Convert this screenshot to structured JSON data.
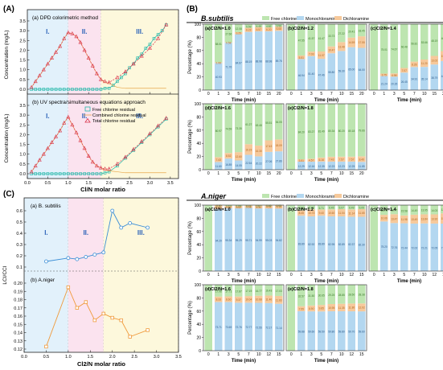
{
  "colors": {
    "free": "#bde5b0",
    "mono": "#b3d7f0",
    "di": "#f6c99b",
    "tri_line": "#d9334a",
    "free_line": "#21b6a8",
    "comb_line": "#e8a64a",
    "ratio_line": "#3b8ed6",
    "ratio_line_b": "#f09a3c",
    "zone1": "#e2f1fb",
    "zone2": "#fbe3ef",
    "zone3": "#fdf8dc"
  },
  "panels": {
    "A": "(A)",
    "B": "(B)",
    "C": "(C)",
    "species_b": "B.subtilis",
    "species_a": "A.niger"
  },
  "chart_data": [
    {
      "type": "line",
      "id": "A",
      "subplots": [
        {
          "label": "(a) DPD colorimetric method",
          "series": [
            {
              "name": "Free chlorine residual",
              "x": [
                0.1,
                0.2,
                0.3,
                0.4,
                0.5,
                0.6,
                0.7,
                0.8,
                0.9,
                1.0,
                1.1,
                1.2,
                1.3,
                1.4,
                1.5,
                1.6,
                1.7,
                1.8,
                1.9,
                2.0,
                2.1,
                2.2,
                2.3,
                2.4,
                2.5,
                2.6,
                2.7,
                2.8,
                2.9,
                3.0,
                3.1,
                3.2,
                3.3,
                3.4
              ],
              "y": [
                0,
                0,
                0,
                0,
                0,
                0,
                0,
                0,
                0,
                0,
                0,
                0,
                0,
                0,
                0,
                0,
                0,
                0,
                0.05,
                0.05,
                0.2,
                0.4,
                0.6,
                0.8,
                1.1,
                1.3,
                1.6,
                1.8,
                2.1,
                2.3,
                2.6,
                2.8,
                3.0,
                3.3
              ]
            },
            {
              "name": "Combined chlorine residual",
              "x": [
                0.1,
                0.2,
                0.3,
                0.4,
                0.5,
                0.6,
                0.7,
                0.8,
                0.9,
                1.0,
                1.1,
                1.2,
                1.3,
                1.4,
                1.5,
                1.6,
                1.7,
                1.8,
                1.9,
                2.0,
                2.2,
                2.4,
                2.6,
                2.8,
                3.0,
                3.2,
                3.4
              ],
              "y": [
                0.1,
                0.4,
                0.7,
                1.0,
                1.3,
                1.6,
                1.9,
                2.2,
                2.6,
                2.9,
                2.85,
                2.7,
                2.4,
                2.0,
                1.6,
                1.2,
                0.8,
                0.5,
                0.35,
                0.3,
                0.1,
                0.05,
                0.05,
                0.05,
                0.05,
                0.05,
                0.05
              ]
            },
            {
              "name": "Total chlorine residual",
              "x": [
                0.1,
                0.2,
                0.3,
                0.4,
                0.5,
                0.6,
                0.7,
                0.8,
                0.9,
                1.0,
                1.1,
                1.2,
                1.3,
                1.4,
                1.5,
                1.6,
                1.7,
                1.8,
                1.9,
                2.0,
                2.2,
                2.4,
                2.6,
                2.8,
                3.0,
                3.2,
                3.4
              ],
              "y": [
                0.1,
                0.4,
                0.7,
                1.0,
                1.3,
                1.6,
                1.9,
                2.2,
                2.6,
                2.9,
                2.85,
                2.7,
                2.4,
                2.0,
                1.6,
                1.2,
                0.8,
                0.5,
                0.4,
                0.35,
                0.6,
                0.9,
                1.3,
                1.7,
                2.1,
                2.6,
                3.3
              ]
            }
          ]
        },
        {
          "label": "(b) UV spectra/simultaneous equations approach",
          "series": [
            {
              "name": "Free chlorine residual",
              "x": [
                0.1,
                0.2,
                0.3,
                0.4,
                0.5,
                0.6,
                0.7,
                0.8,
                0.9,
                1.0,
                1.1,
                1.2,
                1.3,
                1.4,
                1.5,
                1.6,
                1.7,
                1.8,
                1.9,
                2.0,
                2.2,
                2.4,
                2.6,
                2.8,
                3.0,
                3.2,
                3.4
              ],
              "y": [
                0,
                0,
                0,
                0,
                0,
                0,
                0,
                0,
                0,
                0,
                0,
                0,
                0,
                0,
                0,
                0,
                0,
                0,
                0.05,
                0.1,
                0.4,
                0.8,
                1.2,
                1.6,
                2.0,
                2.4,
                2.8
              ]
            },
            {
              "name": "Combined chlorine residual",
              "x": [
                0.1,
                0.2,
                0.3,
                0.4,
                0.5,
                0.6,
                0.7,
                0.8,
                0.9,
                1.0,
                1.1,
                1.2,
                1.3,
                1.4,
                1.5,
                1.6,
                1.7,
                1.8,
                1.9,
                2.0,
                2.2,
                2.4,
                2.6,
                2.8,
                3.0,
                3.2,
                3.4
              ],
              "y": [
                0.1,
                0.4,
                0.7,
                1.0,
                1.3,
                1.6,
                1.9,
                2.2,
                2.6,
                2.9,
                2.5,
                2.1,
                1.7,
                1.3,
                0.9,
                0.6,
                0.4,
                0.3,
                0.2,
                0.15,
                0.1,
                0.05,
                0.05,
                0.05,
                0.05,
                0.05,
                0.05
              ]
            },
            {
              "name": "Total chlorine residual",
              "x": [
                0.1,
                0.2,
                0.3,
                0.4,
                0.5,
                0.6,
                0.7,
                0.8,
                0.9,
                1.0,
                1.1,
                1.2,
                1.3,
                1.4,
                1.5,
                1.6,
                1.7,
                1.8,
                1.9,
                2.0,
                2.2,
                2.4,
                2.6,
                2.8,
                3.0,
                3.2,
                3.4
              ],
              "y": [
                0.1,
                0.4,
                0.7,
                1.0,
                1.3,
                1.6,
                1.9,
                2.2,
                2.6,
                2.9,
                2.5,
                2.1,
                1.7,
                1.3,
                0.9,
                0.6,
                0.4,
                0.3,
                0.25,
                0.25,
                0.5,
                0.85,
                1.25,
                1.65,
                2.05,
                2.45,
                2.85
              ]
            }
          ]
        }
      ],
      "zones": [
        {
          "label": "I.",
          "from": 0,
          "to": 1.0
        },
        {
          "label": "II.",
          "from": 1.0,
          "to": 1.8
        },
        {
          "label": "III.",
          "from": 1.8,
          "to": 3.7
        }
      ],
      "xlabel": "Cl/N molar ratio",
      "ylabel": "Concentration (mg/L)",
      "xlim": [
        0,
        3.7
      ],
      "ylim": [
        0,
        3.5
      ],
      "xticks": [
        "0.0",
        "0.5",
        "1.0",
        "1.5",
        "2.0",
        "2.5",
        "3.0",
        "3.5"
      ],
      "yticks": [
        "0.0",
        "0.5",
        "1.0",
        "1.5",
        "2.0",
        "2.5",
        "3.0",
        "3.5"
      ]
    },
    {
      "type": "line",
      "id": "C",
      "xlabel": "Cl2/N molar ratio",
      "ylabel": "LCI/CCI",
      "xlim": [
        0,
        3.5
      ],
      "xticks": [
        "0.0",
        "0.5",
        "1.0",
        "1.5",
        "2.0",
        "2.5",
        "3.0",
        "3.5"
      ],
      "zones": [
        {
          "label": "I.",
          "from": 0,
          "to": 1.0
        },
        {
          "label": "II.",
          "from": 1.0,
          "to": 1.8
        },
        {
          "label": "III.",
          "from": 1.8,
          "to": 3.5
        }
      ],
      "subplots": [
        {
          "label": "(a) B. subtilis",
          "x": [
            0.5,
            1.0,
            1.2,
            1.4,
            1.6,
            1.8,
            2.0,
            2.2,
            2.4,
            2.8
          ],
          "y": [
            0.15,
            0.18,
            0.17,
            0.19,
            0.21,
            0.23,
            0.6,
            0.45,
            0.49,
            0.45
          ],
          "ylim": [
            0.1,
            0.6
          ],
          "yticks": [
            "0.1",
            "0.2",
            "0.3",
            "0.4",
            "0.5",
            "0.6"
          ]
        },
        {
          "label": "(b) A.niger",
          "x": [
            0.5,
            1.0,
            1.2,
            1.4,
            1.6,
            1.8,
            2.0,
            2.2,
            2.4,
            2.8
          ],
          "y": [
            0.123,
            0.195,
            0.17,
            0.177,
            0.155,
            0.163,
            0.158,
            0.155,
            0.135,
            0.143
          ],
          "ylim": [
            0.12,
            0.2
          ],
          "yticks": [
            "0.12",
            "0.13",
            "0.14",
            "0.15",
            "0.16",
            "0.17",
            "0.18",
            "0.19",
            "0.20"
          ]
        }
      ]
    },
    {
      "type": "bar",
      "id": "B-subtilis",
      "stacked": true,
      "legend": [
        "Free chlorine",
        "Monochloramine",
        "Dichloramine"
      ],
      "ylabel": "Percentage (%)",
      "xlabel": "Time (min)",
      "ylim": [
        0,
        100
      ],
      "yticks": [
        "0",
        "20",
        "40",
        "60",
        "80",
        "100"
      ],
      "subplots": [
        {
          "label": "(a)Cl2/N=1.0",
          "categories": [
            "0",
            "1",
            "3",
            "5",
            "7",
            "10",
            "15",
            "20"
          ],
          "mono": [
            0,
            40.93,
            71.76,
            84.67,
            88.19,
            88.98,
            88.98,
            89.76
          ],
          "di": [
            0,
            1.06,
            0.58,
            3.25,
            6.22,
            6.57,
            6.2,
            6.68
          ]
        },
        {
          "label": "(b)Cl2/N=1.2",
          "categories": [
            "0",
            "1",
            "3",
            "5",
            "7",
            "10",
            "15",
            "20"
          ],
          "mono": [
            0,
            46.94,
            51.4,
            47.46,
            55.8,
            59.3,
            65.0,
            64.0
          ],
          "di": [
            0,
            5.51,
            7.03,
            11.07,
            10.47,
            13.48,
            14.59,
            17.55
          ]
        },
        {
          "label": "(c)Cl2/N=1.4",
          "categories": [
            "0",
            "1",
            "3",
            "5",
            "7",
            "10",
            "15",
            "20"
          ],
          "mono": [
            0,
            21.24,
            20.35,
            26.45,
            34.91,
            35.14,
            38.79,
            44.08
          ],
          "di": [
            0,
            3.75,
            4.98,
            7.07,
            8.28,
            11.2,
            13.02,
            15.05
          ]
        },
        {
          "label": "(d)Cl2/N=1.6",
          "categories": [
            "0",
            "1",
            "3",
            "5",
            "7",
            "10",
            "15",
            "20"
          ],
          "mono": [
            0,
            11.6,
            16.89,
            14.05,
            22.54,
            20.22,
            27.06,
            27.86
          ],
          "di": [
            0,
            7.43,
            8.52,
            12.6,
            16.19,
            16.3,
            17.43,
            18.09
          ]
        },
        {
          "label": "(e)Cl2/N=1.8",
          "categories": [
            "0",
            "1",
            "3",
            "5",
            "7",
            "10",
            "15",
            "20"
          ],
          "mono": [
            0,
            12.29,
            12.16,
            12.35,
            12.23,
            12.23,
            12.25,
            11.85
          ],
          "di": [
            0,
            3.51,
            4.57,
            6.16,
            7.43,
            7.57,
            7.57,
            8.49
          ]
        }
      ]
    },
    {
      "type": "bar",
      "id": "A-niger",
      "stacked": true,
      "legend": [
        "Free chlorine",
        "Monochloramine",
        "Dichloramine"
      ],
      "ylabel": "Percentage (%)",
      "xlabel": "Time (min)",
      "ylim": [
        0,
        100
      ],
      "yticks": [
        "0",
        "20",
        "40",
        "60",
        "80",
        "100"
      ],
      "subplots": [
        {
          "label": "(a)Cl2/N=1.0",
          "categories": [
            "0",
            "1",
            "3",
            "5",
            "7",
            "10",
            "12",
            "15"
          ],
          "mono": [
            0,
            94.29,
            95.34,
            95.29,
            95.71,
            94.99,
            95.03,
            94.82
          ],
          "di": [
            0,
            5.71,
            3.56,
            3.62,
            3.58,
            4.34,
            4.51,
            5.13
          ]
        },
        {
          "label": "(b)Cl2/N=1.2",
          "categories": [
            "0",
            "1",
            "3",
            "5",
            "7",
            "10",
            "12",
            "15"
          ],
          "mono": [
            0,
            83.89,
            82.92,
            83.89,
            82.95,
            82.89,
            82.37,
            82.3
          ],
          "di": [
            0,
            8.45,
            10.73,
            9.4,
            10.6,
            11.04,
            11.14,
            11.65
          ]
        },
        {
          "label": "(c)Cl2/N=1.4",
          "categories": [
            "0",
            "1",
            "3",
            "5",
            "7",
            "10",
            "12",
            "15"
          ],
          "mono": [
            0,
            75.2,
            72.76,
            72.44,
            72.02,
            72.21,
            72.05,
            71.96
          ],
          "di": [
            0,
            10.06,
            13.47,
            11.98,
            13.49,
            13.84,
            13.92,
            15.52
          ]
        },
        {
          "label": "(d)Cl2/N=1.6",
          "categories": [
            "0",
            "1",
            "3",
            "5",
            "7",
            "10",
            "12",
            "15"
          ],
          "mono": [
            0,
            73.71,
            73.69,
            72.76,
            72.77,
            72.55,
            72.17,
            71.14
          ],
          "di": [
            0,
            8.33,
            8.6,
            9.37,
            10.04,
            10.68,
            11.4,
            11.83
          ]
        },
        {
          "label": "(e)Cl2/N=1.8",
          "categories": [
            "0",
            "1",
            "3",
            "5",
            "7",
            "10",
            "12",
            "15"
          ],
          "mono": [
            0,
            59.88,
            59.6,
            59.5,
            59.8,
            59.8,
            59.7,
            59.6
          ],
          "di": [
            0,
            7.55,
            8.9,
            9.85,
            10.95,
            11.35,
            11.8,
            12.02
          ]
        }
      ]
    }
  ]
}
